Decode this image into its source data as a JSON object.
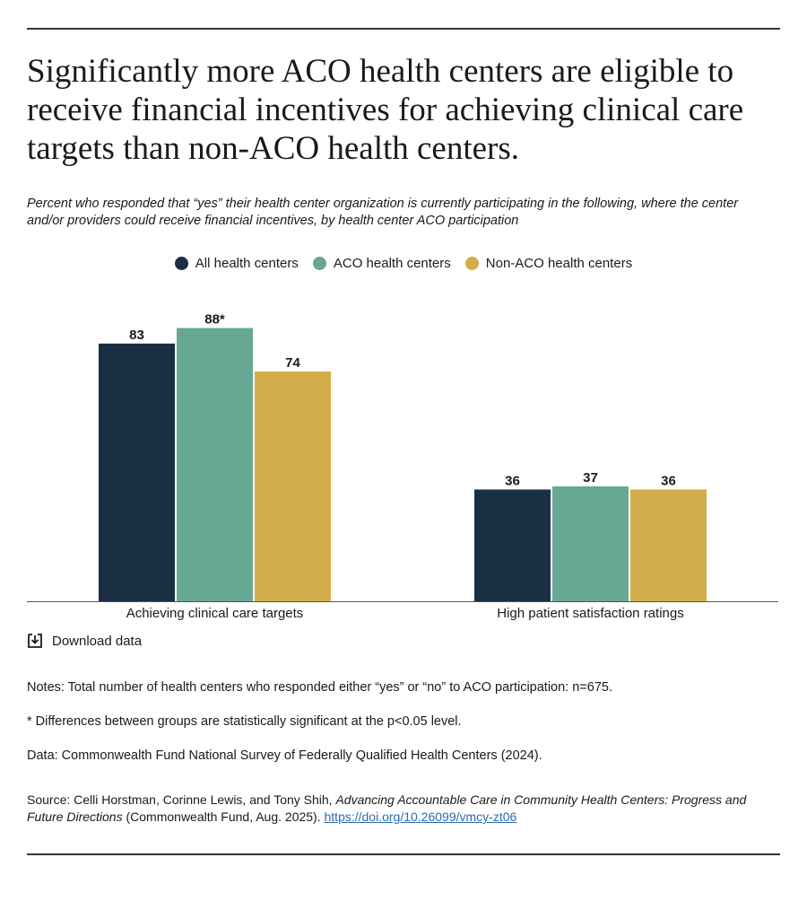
{
  "title": "Significantly more ACO health centers are eligible to receive financial incentives for achieving clinical care targets than non-ACO health centers.",
  "subtitle": "Percent who responded that “yes” their health center organization is currently participating in the following, where the center and/or providers could receive financial incentives, by health center ACO participation",
  "colors": {
    "all": "#1a2e44",
    "aco": "#66a894",
    "nonaco": "#d4ad4b"
  },
  "chart_data": {
    "type": "bar",
    "categories": [
      "Achieving clinical care targets",
      "High patient satisfaction ratings"
    ],
    "series": [
      {
        "name": "All health centers",
        "values": [
          83,
          36
        ],
        "labels": [
          "83",
          "36"
        ],
        "color_key": "all"
      },
      {
        "name": "ACO health centers",
        "values": [
          88,
          37
        ],
        "labels": [
          "88*",
          "37"
        ],
        "color_key": "aco"
      },
      {
        "name": "Non-ACO health centers",
        "values": [
          74,
          36
        ],
        "labels": [
          "74",
          "36"
        ],
        "color_key": "nonaco"
      }
    ],
    "ylim": [
      0,
      100
    ],
    "legend_position": "top-center",
    "grid": false
  },
  "download_label": "Download data",
  "download_icon": "download-icon",
  "notes": [
    "Notes: Total number of health centers who responded either “yes” or “no” to ACO participation: n=675.",
    "* Differences between groups are statistically significant at the p<0.05 level.",
    "Data: Commonwealth Fund National Survey of Federally Qualified Health Centers (2024)."
  ],
  "source": {
    "prefix": "Source: Celli Horstman, Corinne Lewis, and Tony Shih, ",
    "work_title": "Advancing Accountable Care in Community Health Centers: Progress and Future Directions",
    "suffix": " (Commonwealth Fund, Aug. 2025). ",
    "link_text": "https://doi.org/10.26099/vmcy-zt06"
  }
}
